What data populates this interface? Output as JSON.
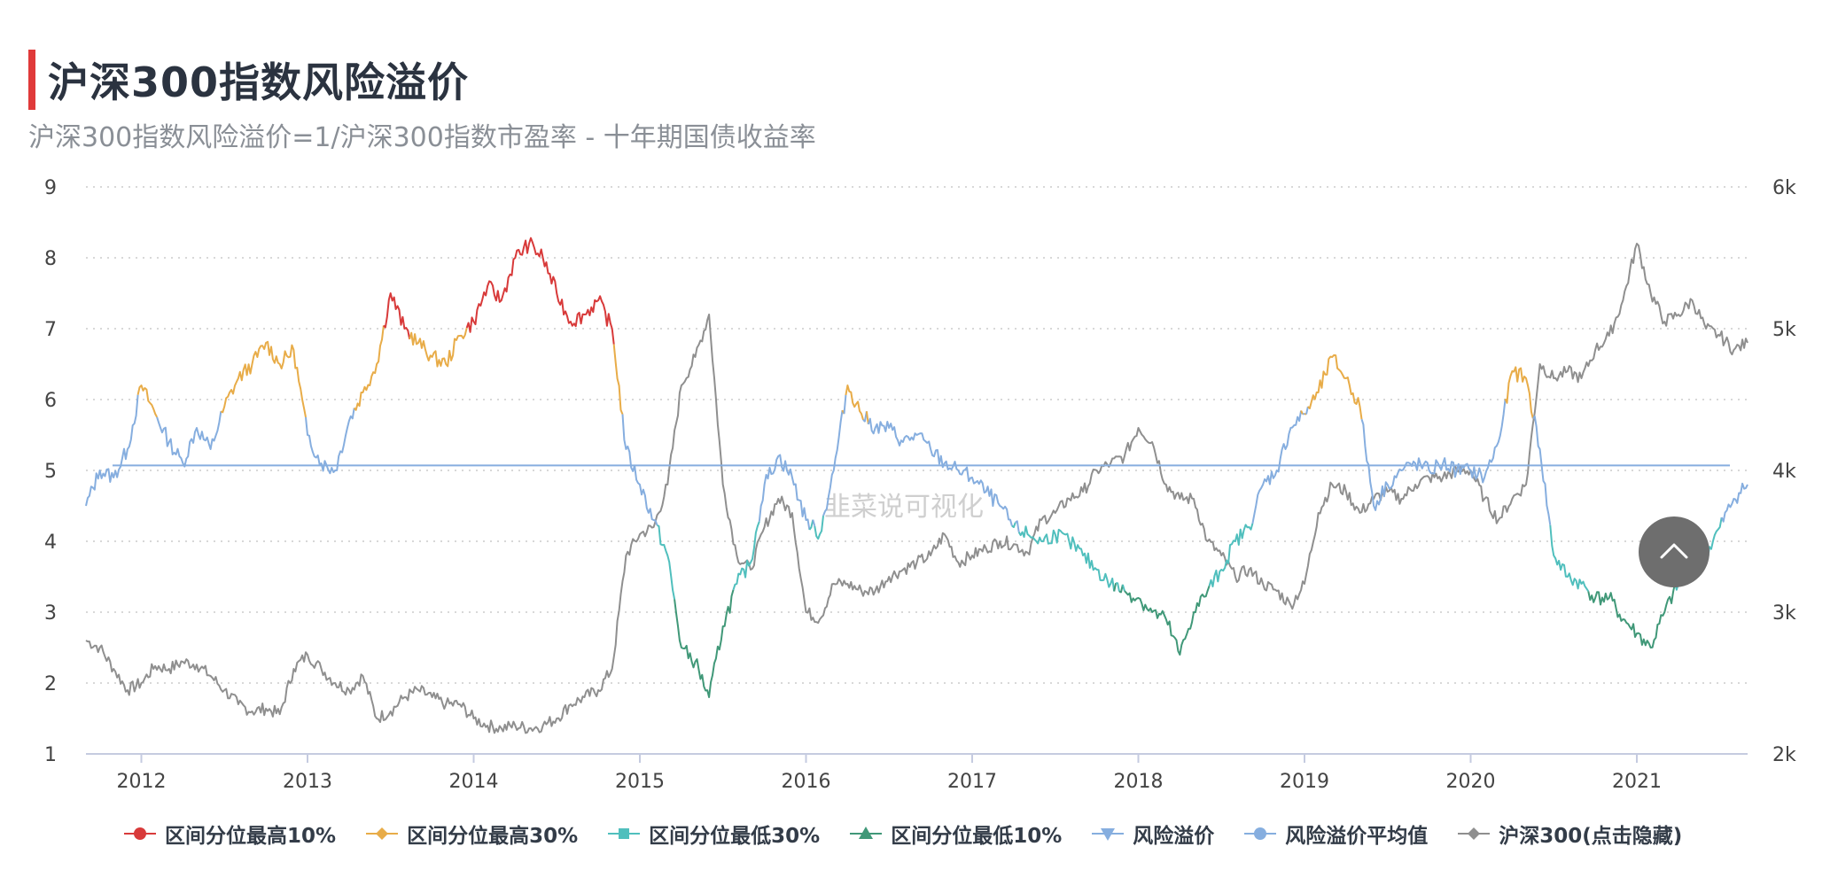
{
  "header": {
    "title": "沪深300指数风险溢价",
    "subtitle": "沪深300指数风险溢价=1/沪深300指数市盈率 - 十年期国债收益率"
  },
  "watermark": "韭菜说可视化",
  "colors": {
    "top10": "#d83a3a",
    "top30": "#e8ac48",
    "bottom30": "#50bfbd",
    "bottom10": "#409878",
    "premium": "#86aedf",
    "average": "#86aedf",
    "hs300": "#8f8f8f",
    "accent": "#e03a3a",
    "grid": "#cccccc"
  },
  "legend": [
    {
      "label": "区间分位最高10%",
      "symbol": "circle",
      "color_key": "top10"
    },
    {
      "label": "区间分位最高30%",
      "symbol": "diamond",
      "color_key": "top30"
    },
    {
      "label": "区间分位最低30%",
      "symbol": "square",
      "color_key": "bottom30"
    },
    {
      "label": "区间分位最低10%",
      "symbol": "triangle",
      "color_key": "bottom10"
    },
    {
      "label": "风险溢价",
      "symbol": "triangle-down",
      "color_key": "premium"
    },
    {
      "label": "风险溢价平均值",
      "symbol": "circle",
      "color_key": "average"
    },
    {
      "label": "沪深300(点击隐藏)",
      "symbol": "diamond",
      "color_key": "hs300"
    }
  ],
  "back_to_top_icon": "chevron-up-icon",
  "chart_data": {
    "type": "line",
    "x_ticks": [
      "2012",
      "2013",
      "2014",
      "2015",
      "2016",
      "2017",
      "2018",
      "2019",
      "2020",
      "2021"
    ],
    "xlim": [
      "2011-09",
      "2021-09"
    ],
    "y_left": {
      "ticks": [
        "1",
        "2",
        "3",
        "4",
        "5",
        "6",
        "7",
        "8",
        "9"
      ],
      "ylim": [
        1,
        9
      ]
    },
    "y_right": {
      "ticks": [
        "2k",
        "3k",
        "4k",
        "5k",
        "6k"
      ],
      "ylim": [
        2000,
        6000
      ]
    },
    "grid": true,
    "legend_position": "bottom",
    "average_premium": 5.07,
    "zone_thresholds": {
      "top10": 6.95,
      "top30": 5.8,
      "bottom30": 4.25,
      "bottom10": 3.3
    },
    "series": [
      {
        "name": "风险溢价",
        "axis": "left",
        "dates": [
          "2011-09",
          "2011-10",
          "2011-11",
          "2011-12",
          "2012-01",
          "2012-02",
          "2012-03",
          "2012-04",
          "2012-05",
          "2012-06",
          "2012-07",
          "2012-08",
          "2012-09",
          "2012-10",
          "2012-11",
          "2012-12",
          "2013-01",
          "2013-02",
          "2013-03",
          "2013-04",
          "2013-05",
          "2013-06",
          "2013-07",
          "2013-08",
          "2013-09",
          "2013-10",
          "2013-11",
          "2013-12",
          "2014-01",
          "2014-02",
          "2014-03",
          "2014-04",
          "2014-05",
          "2014-06",
          "2014-07",
          "2014-08",
          "2014-09",
          "2014-10",
          "2014-11",
          "2014-12",
          "2015-01",
          "2015-02",
          "2015-03",
          "2015-04",
          "2015-05",
          "2015-06",
          "2015-07",
          "2015-08",
          "2015-09",
          "2015-10",
          "2015-11",
          "2015-12",
          "2016-01",
          "2016-02",
          "2016-03",
          "2016-04",
          "2016-05",
          "2016-06",
          "2016-07",
          "2016-08",
          "2016-09",
          "2016-10",
          "2016-11",
          "2016-12",
          "2017-01",
          "2017-02",
          "2017-03",
          "2017-04",
          "2017-05",
          "2017-06",
          "2017-07",
          "2017-08",
          "2017-09",
          "2017-10",
          "2017-11",
          "2017-12",
          "2018-01",
          "2018-02",
          "2018-03",
          "2018-04",
          "2018-05",
          "2018-06",
          "2018-07",
          "2018-08",
          "2018-09",
          "2018-10",
          "2018-11",
          "2018-12",
          "2019-01",
          "2019-02",
          "2019-03",
          "2019-04",
          "2019-05",
          "2019-06",
          "2019-07",
          "2019-08",
          "2019-09",
          "2019-10",
          "2019-11",
          "2019-12",
          "2020-01",
          "2020-02",
          "2020-03",
          "2020-04",
          "2020-05",
          "2020-06",
          "2020-07",
          "2020-08",
          "2020-09",
          "2020-10",
          "2020-11",
          "2020-12",
          "2021-01",
          "2021-02",
          "2021-03",
          "2021-04",
          "2021-05",
          "2021-06",
          "2021-07",
          "2021-08",
          "2021-09"
        ],
        "values": [
          4.5,
          5.0,
          4.9,
          5.3,
          6.2,
          5.8,
          5.4,
          5.1,
          5.6,
          5.3,
          5.9,
          6.3,
          6.5,
          6.8,
          6.5,
          6.7,
          5.5,
          5.1,
          5.0,
          5.7,
          6.1,
          6.5,
          7.5,
          7.0,
          6.8,
          6.6,
          6.5,
          6.9,
          7.1,
          7.6,
          7.4,
          8.0,
          8.2,
          8.0,
          7.5,
          7.1,
          7.2,
          7.4,
          7.0,
          5.3,
          4.8,
          4.3,
          3.8,
          2.5,
          2.3,
          1.8,
          2.8,
          3.4,
          3.7,
          4.8,
          5.2,
          4.9,
          4.3,
          4.1,
          5.0,
          6.2,
          5.8,
          5.6,
          5.6,
          5.4,
          5.5,
          5.3,
          5.1,
          5.0,
          4.9,
          4.7,
          4.5,
          4.2,
          4.1,
          4.0,
          4.1,
          4.0,
          3.8,
          3.6,
          3.4,
          3.3,
          3.2,
          3.0,
          2.9,
          2.4,
          3.0,
          3.3,
          3.6,
          4.0,
          4.2,
          4.8,
          5.0,
          5.6,
          5.8,
          6.1,
          6.6,
          6.3,
          5.9,
          4.5,
          4.8,
          5.0,
          5.1,
          5.0,
          5.1,
          5.0,
          5.0,
          4.9,
          5.4,
          6.4,
          6.3,
          5.3,
          3.8,
          3.5,
          3.4,
          3.2,
          3.2,
          2.9,
          2.7,
          2.5,
          3.0,
          3.4,
          3.6,
          3.8,
          4.2,
          4.6,
          4.8
        ]
      },
      {
        "name": "风险溢价平均值",
        "axis": "left",
        "value": 5.07
      },
      {
        "name": "沪深300(点击隐藏)",
        "axis": "right",
        "dates": [
          "2011-09",
          "2011-10",
          "2011-11",
          "2011-12",
          "2012-01",
          "2012-02",
          "2012-03",
          "2012-04",
          "2012-05",
          "2012-06",
          "2012-07",
          "2012-08",
          "2012-09",
          "2012-10",
          "2012-11",
          "2012-12",
          "2013-01",
          "2013-02",
          "2013-03",
          "2013-04",
          "2013-05",
          "2013-06",
          "2013-07",
          "2013-08",
          "2013-09",
          "2013-10",
          "2013-11",
          "2013-12",
          "2014-01",
          "2014-02",
          "2014-03",
          "2014-04",
          "2014-05",
          "2014-06",
          "2014-07",
          "2014-08",
          "2014-09",
          "2014-10",
          "2014-11",
          "2014-12",
          "2015-01",
          "2015-02",
          "2015-03",
          "2015-04",
          "2015-05",
          "2015-06",
          "2015-07",
          "2015-08",
          "2015-09",
          "2015-10",
          "2015-11",
          "2015-12",
          "2016-01",
          "2016-02",
          "2016-03",
          "2016-04",
          "2016-05",
          "2016-06",
          "2016-07",
          "2016-08",
          "2016-09",
          "2016-10",
          "2016-11",
          "2016-12",
          "2017-01",
          "2017-02",
          "2017-03",
          "2017-04",
          "2017-05",
          "2017-06",
          "2017-07",
          "2017-08",
          "2017-09",
          "2017-10",
          "2017-11",
          "2017-12",
          "2018-01",
          "2018-02",
          "2018-03",
          "2018-04",
          "2018-05",
          "2018-06",
          "2018-07",
          "2018-08",
          "2018-09",
          "2018-10",
          "2018-11",
          "2018-12",
          "2019-01",
          "2019-02",
          "2019-03",
          "2019-04",
          "2019-05",
          "2019-06",
          "2019-07",
          "2019-08",
          "2019-09",
          "2019-10",
          "2019-11",
          "2019-12",
          "2020-01",
          "2020-02",
          "2020-03",
          "2020-04",
          "2020-05",
          "2020-06",
          "2020-07",
          "2020-08",
          "2020-09",
          "2020-10",
          "2020-11",
          "2020-12",
          "2021-01",
          "2021-02",
          "2021-03",
          "2021-04",
          "2021-05",
          "2021-06",
          "2021-07",
          "2021-08",
          "2021-09"
        ],
        "values": [
          2800,
          2750,
          2600,
          2450,
          2500,
          2620,
          2600,
          2650,
          2630,
          2550,
          2450,
          2350,
          2300,
          2320,
          2280,
          2600,
          2700,
          2600,
          2500,
          2450,
          2550,
          2250,
          2300,
          2400,
          2450,
          2400,
          2350,
          2350,
          2250,
          2200,
          2180,
          2200,
          2180,
          2200,
          2250,
          2350,
          2400,
          2450,
          2600,
          3400,
          3550,
          3600,
          3900,
          4600,
          4800,
          5100,
          3900,
          3400,
          3300,
          3600,
          3800,
          3700,
          3000,
          2950,
          3200,
          3200,
          3150,
          3150,
          3250,
          3300,
          3350,
          3400,
          3550,
          3350,
          3400,
          3450,
          3500,
          3480,
          3420,
          3650,
          3700,
          3800,
          3850,
          4000,
          4050,
          4100,
          4300,
          4200,
          3900,
          3800,
          3800,
          3500,
          3400,
          3250,
          3300,
          3200,
          3150,
          3050,
          3200,
          3700,
          3900,
          3850,
          3700,
          3800,
          3850,
          3800,
          3900,
          3950,
          3950,
          4000,
          4000,
          3800,
          3650,
          3800,
          3900,
          4750,
          4650,
          4700,
          4650,
          4850,
          4950,
          5200,
          5600,
          5250,
          5050,
          5100,
          5200,
          5000,
          4950,
          4850,
          4900
        ]
      }
    ]
  }
}
